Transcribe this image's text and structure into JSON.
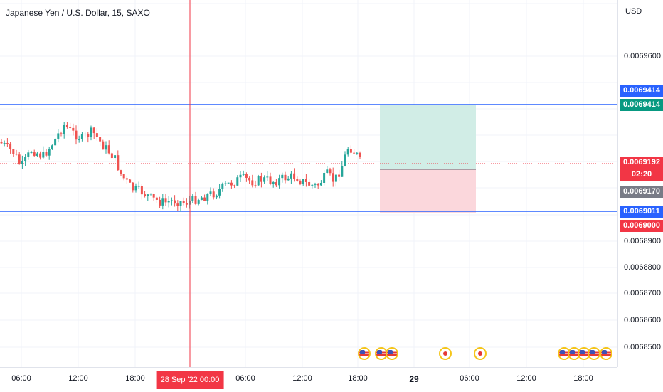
{
  "header": {
    "symbol_title": "Japanese Yen / U.S. Dollar, 15, SAXO"
  },
  "price_axis": {
    "currency": "USD",
    "ticks": [
      "0.0069600",
      "0.0068900",
      "0.0068800",
      "0.0068700",
      "0.0068600",
      "0.0068500"
    ],
    "tags": [
      {
        "label": "0.0069414",
        "color": "#2962ff"
      },
      {
        "label": "0.0069414",
        "color": "#089981"
      },
      {
        "label": "0.0069192",
        "color": "#f23645"
      },
      {
        "label": "02:20",
        "color": "#f23645"
      },
      {
        "label": "0.0069170",
        "color": "#787b86"
      },
      {
        "label": "0.0069011",
        "color": "#2962ff"
      },
      {
        "label": "0.0069000",
        "color": "#f23645"
      }
    ]
  },
  "time_axis": {
    "labels": [
      "06:00",
      "12:00",
      "18:00",
      "06:00",
      "12:00",
      "18:00",
      "29",
      "06:00",
      "12:00",
      "18:00"
    ],
    "crosshair_label": "28 Sep '22   00:00"
  },
  "colors": {
    "up": "#26a69a",
    "down": "#ef5350",
    "channel": "#2962ff",
    "target_zone": "#d1ede6",
    "stop_zone": "#fbd7dc",
    "crosshair": "#f23645"
  },
  "events": [
    {
      "icon": "us-flag-icon"
    },
    {
      "icon": "us-flag-icon"
    },
    {
      "icon": "us-flag-icon"
    },
    {
      "icon": "dot-icon"
    },
    {
      "icon": "dot-icon"
    },
    {
      "icon": "us-flag-icon"
    },
    {
      "icon": "us-flag-icon"
    },
    {
      "icon": "us-flag-icon"
    },
    {
      "icon": "us-flag-icon"
    },
    {
      "icon": "us-flag-icon"
    }
  ]
}
